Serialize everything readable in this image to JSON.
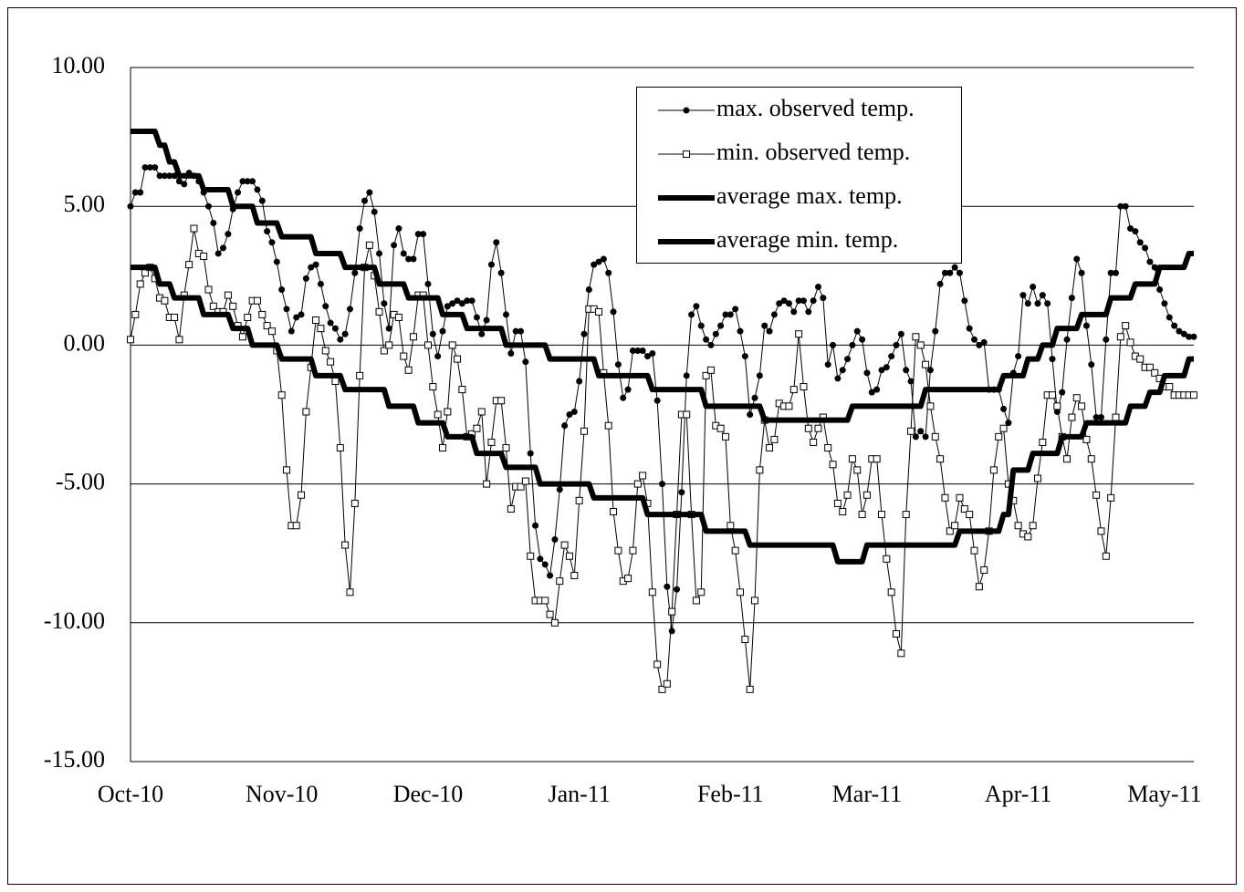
{
  "chart_data": {
    "type": "line",
    "categories": [
      "Oct-10",
      null,
      null,
      null,
      null,
      null,
      null,
      null,
      null,
      null,
      null,
      null,
      null,
      null,
      null,
      null,
      null,
      null,
      null,
      null,
      null,
      null,
      null,
      null,
      null,
      null,
      null,
      null,
      null,
      null,
      null,
      "Nov-10",
      null,
      null,
      null,
      null,
      null,
      null,
      null,
      null,
      null,
      null,
      null,
      null,
      null,
      null,
      null,
      null,
      null,
      null,
      null,
      null,
      null,
      null,
      null,
      null,
      null,
      null,
      null,
      null,
      null,
      "Dec-10",
      null,
      null,
      null,
      null,
      null,
      null,
      null,
      null,
      null,
      null,
      null,
      null,
      null,
      null,
      null,
      null,
      null,
      null,
      null,
      null,
      null,
      null,
      null,
      null,
      null,
      null,
      null,
      null,
      null,
      null,
      "Jan-11",
      null,
      null,
      null,
      null,
      null,
      null,
      null,
      null,
      null,
      null,
      null,
      null,
      null,
      null,
      null,
      null,
      null,
      null,
      null,
      null,
      null,
      null,
      null,
      null,
      null,
      null,
      null,
      null,
      null,
      null,
      "Feb-11",
      null,
      null,
      null,
      null,
      null,
      null,
      null,
      null,
      null,
      null,
      null,
      null,
      null,
      null,
      null,
      null,
      null,
      null,
      null,
      null,
      null,
      null,
      null,
      null,
      null,
      null,
      null,
      "Mar-11",
      null,
      null,
      null,
      null,
      null,
      null,
      null,
      null,
      null,
      null,
      null,
      null,
      null,
      null,
      null,
      null,
      null,
      null,
      null,
      null,
      null,
      null,
      null,
      null,
      null,
      null,
      null,
      null,
      null,
      null,
      "Apr-11",
      null,
      null,
      null,
      null,
      null,
      null,
      null,
      null,
      null,
      null,
      null,
      null,
      null,
      null,
      null,
      null,
      null,
      null,
      null,
      null,
      null,
      null,
      null,
      null,
      null,
      null,
      null,
      null,
      null,
      "May-11",
      null,
      null,
      null,
      null,
      null,
      null
    ],
    "series": [
      {
        "name": "max. observed temp.",
        "color": "#000000",
        "marker": "circle",
        "line_width": 1,
        "values": [
          5.0,
          5.5,
          5.5,
          6.4,
          6.4,
          6.4,
          6.1,
          6.1,
          6.1,
          6.1,
          5.9,
          5.8,
          6.2,
          6.1,
          5.9,
          5.5,
          5.0,
          4.4,
          3.3,
          3.5,
          4.0,
          4.9,
          5.5,
          5.9,
          5.9,
          5.9,
          5.6,
          5.2,
          4.1,
          3.7,
          3.0,
          2.0,
          1.3,
          0.5,
          1.0,
          1.1,
          2.4,
          2.8,
          2.9,
          2.2,
          1.4,
          0.8,
          0.6,
          0.2,
          0.4,
          1.3,
          2.6,
          4.2,
          5.2,
          5.5,
          4.8,
          3.3,
          1.5,
          0.6,
          3.6,
          4.2,
          3.3,
          3.1,
          3.1,
          4.0,
          4.0,
          2.2,
          0.4,
          -0.4,
          0.5,
          1.4,
          1.5,
          1.6,
          1.5,
          1.6,
          1.6,
          1.0,
          0.4,
          0.9,
          2.9,
          3.7,
          2.6,
          1.1,
          -0.3,
          0.5,
          0.5,
          -0.6,
          -3.9,
          -6.5,
          -7.7,
          -7.9,
          -8.3,
          -7.0,
          -5.2,
          -2.9,
          -2.5,
          -2.4,
          -1.3,
          0.4,
          2.0,
          2.9,
          3.0,
          3.1,
          2.6,
          1.2,
          -0.7,
          -1.9,
          -1.6,
          -0.2,
          -0.2,
          -0.2,
          -0.4,
          -0.3,
          -2.0,
          -5.0,
          -8.7,
          -10.3,
          -8.8,
          -5.3,
          -1.1,
          1.1,
          1.4,
          0.7,
          0.2,
          0.0,
          0.4,
          0.7,
          1.1,
          1.1,
          1.3,
          0.5,
          -0.4,
          -2.5,
          -1.9,
          -1.1,
          0.7,
          0.5,
          1.1,
          1.5,
          1.6,
          1.5,
          1.2,
          1.6,
          1.6,
          1.2,
          1.6,
          2.1,
          1.7,
          -0.7,
          0.0,
          -1.2,
          -0.9,
          -0.5,
          0.0,
          0.5,
          0.2,
          -1.0,
          -1.7,
          -1.6,
          -0.9,
          -0.8,
          -0.4,
          0.0,
          0.4,
          -0.9,
          -1.3,
          -3.3,
          -3.1,
          -3.3,
          -0.9,
          0.5,
          2.2,
          2.6,
          2.6,
          2.8,
          2.6,
          1.6,
          0.6,
          0.2,
          0.0,
          0.1,
          -1.6,
          -1.6,
          -1.6,
          -2.3,
          -2.8,
          -1.0,
          -0.4,
          1.8,
          1.5,
          2.1,
          1.5,
          1.8,
          1.5,
          -0.5,
          -2.4,
          -1.7,
          0.2,
          1.7,
          3.1,
          2.6,
          0.7,
          -0.7,
          -2.6,
          -2.6,
          0.2,
          2.6,
          2.6,
          5.0,
          5.0,
          4.2,
          4.1,
          3.7,
          3.5,
          3.0,
          2.8,
          2.0,
          1.5,
          1.0,
          0.7,
          0.5,
          0.4,
          0.3,
          0.3
        ]
      },
      {
        "name": "min. observed temp.",
        "color": "#000000",
        "marker": "square",
        "line_width": 1,
        "values": [
          0.2,
          1.1,
          2.2,
          2.6,
          2.8,
          2.4,
          1.7,
          1.6,
          1.0,
          1.0,
          0.2,
          1.8,
          2.9,
          4.2,
          3.3,
          3.2,
          2.0,
          1.4,
          1.2,
          1.2,
          1.8,
          1.4,
          0.7,
          0.3,
          1.0,
          1.6,
          1.6,
          1.1,
          0.7,
          0.5,
          -0.2,
          -1.8,
          -4.5,
          -6.5,
          -6.5,
          -5.4,
          -2.4,
          -0.8,
          0.9,
          0.6,
          -0.2,
          -0.6,
          -1.3,
          -3.7,
          -7.2,
          -8.9,
          -5.7,
          -1.1,
          2.8,
          3.6,
          2.5,
          1.2,
          -0.2,
          0.0,
          1.1,
          1.0,
          -0.4,
          -0.9,
          0.3,
          1.8,
          1.8,
          0.0,
          -1.5,
          -2.5,
          -3.7,
          -2.4,
          0.0,
          -0.5,
          -1.6,
          -3.3,
          -3.2,
          -3.0,
          -2.4,
          -5.0,
          -3.5,
          -2.0,
          -2.0,
          -3.7,
          -5.9,
          -5.1,
          -5.1,
          -4.9,
          -7.6,
          -9.2,
          -9.2,
          -9.2,
          -9.7,
          -10.0,
          -8.5,
          -7.2,
          -7.6,
          -8.3,
          -5.6,
          -3.1,
          1.3,
          1.3,
          1.2,
          -1.0,
          -2.9,
          -6.0,
          -7.4,
          -8.5,
          -8.4,
          -7.4,
          -5.0,
          -4.7,
          -5.7,
          -8.9,
          -11.5,
          -12.4,
          -12.2,
          -9.6,
          -6.1,
          -2.5,
          -2.5,
          -6.1,
          -9.2,
          -8.9,
          -1.1,
          -0.9,
          -2.9,
          -3.0,
          -3.3,
          -6.5,
          -7.4,
          -8.9,
          -10.6,
          -12.4,
          -9.2,
          -4.5,
          -2.7,
          -3.7,
          -3.4,
          -2.1,
          -2.2,
          -2.2,
          -1.6,
          0.4,
          -1.5,
          -3.0,
          -3.5,
          -3.0,
          -2.6,
          -3.7,
          -4.3,
          -5.7,
          -6.0,
          -5.4,
          -4.1,
          -4.5,
          -6.1,
          -5.4,
          -4.1,
          -4.1,
          -6.1,
          -7.7,
          -8.9,
          -10.4,
          -11.1,
          -6.1,
          -3.1,
          0.3,
          0.0,
          -0.7,
          -2.2,
          -3.3,
          -4.1,
          -5.5,
          -6.7,
          -6.5,
          -5.5,
          -5.9,
          -6.1,
          -7.4,
          -8.7,
          -8.1,
          -6.7,
          -4.5,
          -3.3,
          -3.0,
          -5.0,
          -5.6,
          -6.5,
          -6.8,
          -6.9,
          -6.5,
          -4.8,
          -3.5,
          -1.8,
          -1.8,
          -2.2,
          -3.3,
          -4.1,
          -2.6,
          -1.9,
          -2.2,
          -3.4,
          -4.1,
          -5.4,
          -6.7,
          -7.6,
          -5.5,
          -2.6,
          0.3,
          0.7,
          0.1,
          -0.4,
          -0.5,
          -0.8,
          -0.8,
          -1.0,
          -1.2,
          -1.5,
          -1.5,
          -1.8,
          -1.8,
          -1.8,
          -1.8,
          -1.8
        ]
      },
      {
        "name": "average max. temp.",
        "color": "#000000",
        "marker": "none",
        "line_width": 6,
        "values": [
          7.7,
          7.7,
          7.7,
          7.7,
          7.7,
          7.7,
          7.2,
          7.2,
          6.6,
          6.6,
          6.1,
          6.1,
          6.1,
          6.1,
          6.1,
          5.6,
          5.6,
          5.6,
          5.6,
          5.6,
          5.6,
          5.0,
          5.0,
          5.0,
          5.0,
          5.0,
          4.4,
          4.4,
          4.4,
          4.4,
          4.4,
          3.9,
          3.9,
          3.9,
          3.9,
          3.9,
          3.9,
          3.9,
          3.3,
          3.3,
          3.3,
          3.3,
          3.3,
          3.3,
          2.8,
          2.8,
          2.8,
          2.8,
          2.8,
          2.8,
          2.8,
          2.2,
          2.2,
          2.2,
          2.2,
          2.2,
          2.2,
          1.7,
          1.7,
          1.7,
          1.7,
          1.7,
          1.7,
          1.7,
          1.1,
          1.1,
          1.1,
          1.1,
          1.1,
          0.6,
          0.6,
          0.6,
          0.6,
          0.6,
          0.6,
          0.6,
          0.6,
          0.0,
          0.0,
          0.0,
          0.0,
          0.0,
          0.0,
          0.0,
          0.0,
          0.0,
          -0.5,
          -0.5,
          -0.5,
          -0.5,
          -0.5,
          -0.5,
          -0.5,
          -0.5,
          -0.5,
          -0.5,
          -1.1,
          -1.1,
          -1.1,
          -1.1,
          -1.1,
          -1.1,
          -1.1,
          -1.1,
          -1.1,
          -1.1,
          -1.1,
          -1.6,
          -1.6,
          -1.6,
          -1.6,
          -1.6,
          -1.6,
          -1.6,
          -1.6,
          -1.6,
          -1.6,
          -1.6,
          -2.2,
          -2.2,
          -2.2,
          -2.2,
          -2.2,
          -2.2,
          -2.2,
          -2.2,
          -2.2,
          -2.2,
          -2.2,
          -2.2,
          -2.7,
          -2.7,
          -2.7,
          -2.7,
          -2.7,
          -2.7,
          -2.7,
          -2.7,
          -2.7,
          -2.7,
          -2.7,
          -2.7,
          -2.7,
          -2.7,
          -2.7,
          -2.7,
          -2.7,
          -2.7,
          -2.2,
          -2.2,
          -2.2,
          -2.2,
          -2.2,
          -2.2,
          -2.2,
          -2.2,
          -2.2,
          -2.2,
          -2.2,
          -2.2,
          -2.2,
          -2.2,
          -2.2,
          -1.6,
          -1.6,
          -1.6,
          -1.6,
          -1.6,
          -1.6,
          -1.6,
          -1.6,
          -1.6,
          -1.6,
          -1.6,
          -1.6,
          -1.6,
          -1.6,
          -1.6,
          -1.6,
          -1.1,
          -1.1,
          -1.1,
          -1.1,
          -1.1,
          -0.5,
          -0.5,
          -0.5,
          0.0,
          0.0,
          0.0,
          0.6,
          0.6,
          0.6,
          0.6,
          0.6,
          1.1,
          1.1,
          1.1,
          1.1,
          1.1,
          1.1,
          1.7,
          1.7,
          1.7,
          1.7,
          1.7,
          2.2,
          2.2,
          2.2,
          2.2,
          2.2,
          2.8,
          2.8,
          2.8,
          2.8,
          2.8,
          2.8,
          3.3,
          3.3
        ]
      },
      {
        "name": "average min. temp.",
        "color": "#000000",
        "marker": "none",
        "line_width": 6,
        "values": [
          2.8,
          2.8,
          2.8,
          2.8,
          2.8,
          2.8,
          2.2,
          2.2,
          2.2,
          1.7,
          1.7,
          1.7,
          1.7,
          1.7,
          1.7,
          1.1,
          1.1,
          1.1,
          1.1,
          1.1,
          1.1,
          0.6,
          0.6,
          0.6,
          0.6,
          0.0,
          0.0,
          0.0,
          0.0,
          0.0,
          0.0,
          -0.5,
          -0.5,
          -0.5,
          -0.5,
          -0.5,
          -0.5,
          -0.5,
          -1.1,
          -1.1,
          -1.1,
          -1.1,
          -1.1,
          -1.1,
          -1.6,
          -1.6,
          -1.6,
          -1.6,
          -1.6,
          -1.6,
          -1.6,
          -1.6,
          -1.6,
          -2.2,
          -2.2,
          -2.2,
          -2.2,
          -2.2,
          -2.2,
          -2.8,
          -2.8,
          -2.8,
          -2.8,
          -2.8,
          -2.8,
          -3.3,
          -3.3,
          -3.3,
          -3.3,
          -3.3,
          -3.3,
          -3.9,
          -3.9,
          -3.9,
          -3.9,
          -3.9,
          -3.9,
          -4.4,
          -4.4,
          -4.4,
          -4.4,
          -4.4,
          -4.4,
          -4.4,
          -5.0,
          -5.0,
          -5.0,
          -5.0,
          -5.0,
          -5.0,
          -5.0,
          -5.0,
          -5.0,
          -5.0,
          -5.0,
          -5.5,
          -5.5,
          -5.5,
          -5.5,
          -5.5,
          -5.5,
          -5.5,
          -5.5,
          -5.5,
          -5.5,
          -5.5,
          -6.1,
          -6.1,
          -6.1,
          -6.1,
          -6.1,
          -6.1,
          -6.1,
          -6.1,
          -6.1,
          -6.1,
          -6.1,
          -6.1,
          -6.7,
          -6.7,
          -6.7,
          -6.7,
          -6.7,
          -6.7,
          -6.7,
          -6.7,
          -6.7,
          -7.2,
          -7.2,
          -7.2,
          -7.2,
          -7.2,
          -7.2,
          -7.2,
          -7.2,
          -7.2,
          -7.2,
          -7.2,
          -7.2,
          -7.2,
          -7.2,
          -7.2,
          -7.2,
          -7.2,
          -7.2,
          -7.8,
          -7.8,
          -7.8,
          -7.8,
          -7.8,
          -7.8,
          -7.2,
          -7.2,
          -7.2,
          -7.2,
          -7.2,
          -7.2,
          -7.2,
          -7.2,
          -7.2,
          -7.2,
          -7.2,
          -7.2,
          -7.2,
          -7.2,
          -7.2,
          -7.2,
          -7.2,
          -7.2,
          -7.2,
          -6.7,
          -6.7,
          -6.7,
          -6.7,
          -6.7,
          -6.7,
          -6.7,
          -6.7,
          -6.7,
          -6.1,
          -6.1,
          -4.5,
          -4.5,
          -4.5,
          -4.5,
          -3.9,
          -3.9,
          -3.9,
          -3.9,
          -3.9,
          -3.9,
          -3.3,
          -3.3,
          -3.3,
          -3.3,
          -3.3,
          -2.8,
          -2.8,
          -2.8,
          -2.8,
          -2.8,
          -2.8,
          -2.8,
          -2.8,
          -2.8,
          -2.2,
          -2.2,
          -2.2,
          -2.2,
          -1.7,
          -1.7,
          -1.7,
          -1.1,
          -1.1,
          -1.1,
          -1.1,
          -1.1,
          -0.5,
          -0.5
        ]
      }
    ],
    "ylim": [
      -15,
      10
    ],
    "yticks": [
      {
        "value": -15,
        "label": "-15.00"
      },
      {
        "value": -10,
        "label": "-10.00"
      },
      {
        "value": -5,
        "label": "-5.00"
      },
      {
        "value": 0,
        "label": "0.00"
      },
      {
        "value": 5,
        "label": "5.00"
      },
      {
        "value": 10,
        "label": "10.00"
      }
    ],
    "grid": true,
    "legend_position": "top-right"
  }
}
